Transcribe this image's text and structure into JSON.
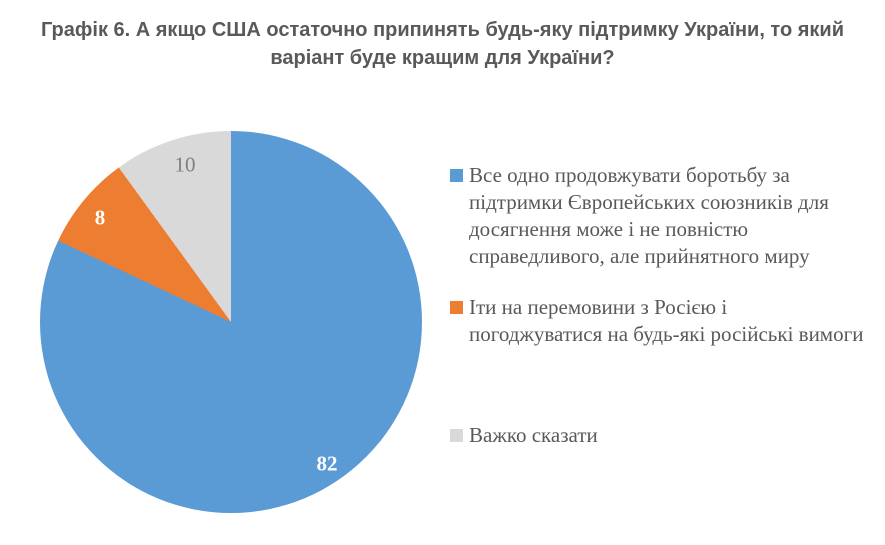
{
  "title": "Графік 6. А якщо США остаточно припинять будь-яку підтримку України, то який варіант буде кращим для України?",
  "colors": {
    "background": "#FFFFFF",
    "title_text": "#595959",
    "legend_text": "#595959"
  },
  "chart_data": {
    "type": "pie",
    "title": "Графік 6. А якщо США остаточно припинять будь-яку підтримку України, то який варіант буде кращим для України?",
    "labels": [
      "Все одно продовжувати боротьбу за підтримки Європейських союзників для досягнення може і не повністю справедливого, але прийнятного миру",
      "Іти на перемовини з Росією і погоджуватися на будь-які російські вимоги",
      "Важко сказати"
    ],
    "values": [
      82,
      8,
      10
    ],
    "colors": [
      "#5B9BD5",
      "#ED7D31",
      "#D9D9D9"
    ],
    "label_colors": [
      "#FFFFFF",
      "#FFFFFF",
      "#7F7F7F"
    ],
    "data_labels": [
      "82",
      "8",
      "10"
    ],
    "start_angle_deg": 0,
    "direction": "clockwise",
    "legend_position": "right",
    "units": "percent"
  }
}
